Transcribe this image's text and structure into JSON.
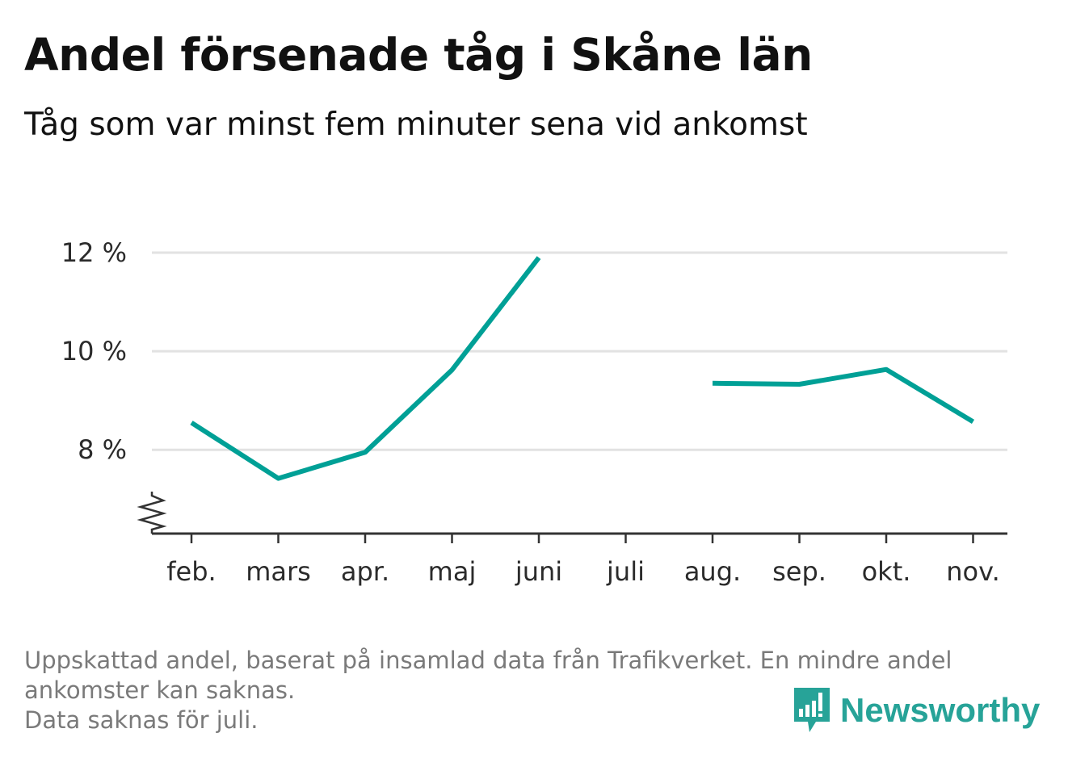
{
  "title": "Andel försenade tåg i Skåne län",
  "subtitle": "Tåg som var minst fem minuter sena vid ankomst",
  "note_lines": [
    "Uppskattad andel, baserat på insamlad data från Trafikverket. En mindre andel",
    "ankomster kan saknas.",
    "Data saknas för juli."
  ],
  "brand": "Newsworthy",
  "colors": {
    "line": "#00a096",
    "grid": "#e2e2e2",
    "axis": "#333333",
    "brand": "#27a398"
  },
  "chart_data": {
    "type": "line",
    "title": "Andel försenade tåg i Skåne län",
    "subtitle": "Tåg som var minst fem minuter sena vid ankomst",
    "categories": [
      "feb.",
      "mars",
      "apr.",
      "maj",
      "juni",
      "juli",
      "aug.",
      "sep.",
      "okt.",
      "nov."
    ],
    "series": [
      {
        "values": [
          8.55,
          7.42,
          7.95,
          9.62,
          11.9,
          null,
          9.35,
          9.33,
          9.63,
          8.57
        ]
      }
    ],
    "y_ticks": [
      8,
      10,
      12
    ],
    "y_tick_labels": [
      "8 %",
      "10 %",
      "12 %"
    ],
    "ylim": [
      6.3,
      12.0
    ],
    "ylabel": "",
    "xlabel": "",
    "y_axis_break": true,
    "grid": true,
    "legend": "none"
  }
}
